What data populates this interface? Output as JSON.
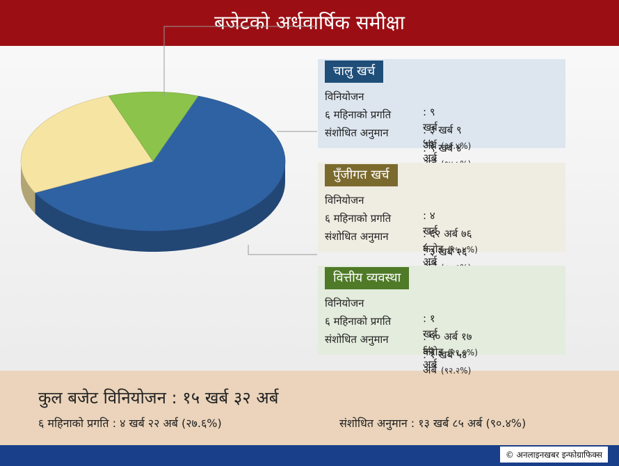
{
  "header": {
    "title": "बजेटको अर्धवार्षिक समीक्षा"
  },
  "chart_data": {
    "type": "pie",
    "categories": [
      "चालु खर्च",
      "पुँजीगत खर्च",
      "वित्तीय व्यवस्था"
    ],
    "values": [
      62,
      27,
      11
    ],
    "colors": [
      "#2f62a3",
      "#f6e4a3",
      "#8cc34a"
    ]
  },
  "panels": [
    {
      "rows": [
        {
          "label": "विनियोजन",
          "value": ": ९ खर्ब ५७ अर्ब"
        },
        {
          "label": "६ महिनाको प्रगति",
          "value": ": ३ खर्ब ९ अर्ब",
          "pct": "(३२.४%)"
        },
        {
          "label": "संशोधित अनुमान",
          "value": ": ९ खर्ब ४ अर्ब",
          "pct": "(९४.५%)"
        }
      ]
    },
    {
      "rows": [
        {
          "label": "विनियोजन",
          "value": ": ४ खर्ब ८ अर्ब"
        },
        {
          "label": "६ महिनाको प्रगति",
          "value": ": ६२ अर्ब ७६ करोड",
          "pct": "(१५.४%)"
        },
        {
          "label": "संशोधित अनुमान",
          "value": ": ३ खर्ब २६ अर्ब",
          "pct": "(८०.१%)"
        }
      ]
    },
    {
      "rows": [
        {
          "label": "विनियोजन",
          "value": ": १ खर्ब ६७ अर्ब"
        },
        {
          "label": "६ महिनाको प्रगति",
          "value": ": ५० अर्ब १७ करोड",
          "pct": "(२९.९%)"
        },
        {
          "label": "संशोधित अनुमान",
          "value": ": १ खर्ब ५४ अर्ब",
          "pct": "(९२.२%)"
        }
      ]
    }
  ],
  "footer": {
    "total": "कुल बजेट विनियोजन : १५ खर्ब ३२ अर्ब",
    "progress": "६ महिनाको प्रगति : ४ खर्ब २२ अर्ब (२७.६%)",
    "revised": "संशोधित अनुमान : १३ खर्ब ८५ अर्ब (९०.४%)"
  },
  "credit": "© अनलाइनखबर इन्फोग्राफिक्स"
}
